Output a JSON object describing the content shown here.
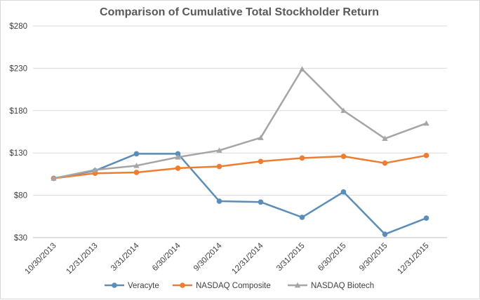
{
  "chart_data": {
    "type": "line",
    "title": "Comparison of Cumulative Total Stockholder Return",
    "xlabel": "",
    "ylabel": "",
    "categories": [
      "10/30/2013",
      "12/31/2013",
      "3/31/2014",
      "6/30/2014",
      "9/30/2014",
      "12/31/2014",
      "3/31/2015",
      "6/30/2015",
      "9/30/2015",
      "12/31/2015"
    ],
    "ylim": [
      30,
      280
    ],
    "yticks": [
      30,
      80,
      130,
      180,
      230,
      280
    ],
    "ytick_labels": [
      "$30",
      "$80",
      "$130",
      "$180",
      "$230",
      "$280"
    ],
    "grid": true,
    "legend_position": "bottom",
    "series": [
      {
        "name": "Veracyte",
        "color": "#5b8db8",
        "marker": "circle",
        "values": [
          100,
          109,
          129,
          129,
          73,
          72,
          54,
          84,
          34,
          53
        ]
      },
      {
        "name": "NASDAQ Composite",
        "color": "#ed7d31",
        "marker": "circle",
        "values": [
          100,
          106,
          107,
          112,
          114,
          120,
          124,
          126,
          118,
          127
        ]
      },
      {
        "name": "NASDAQ Biotech",
        "color": "#a5a5a5",
        "marker": "triangle",
        "values": [
          100,
          110,
          115,
          125,
          133,
          148,
          229,
          180,
          147,
          165
        ]
      }
    ]
  }
}
